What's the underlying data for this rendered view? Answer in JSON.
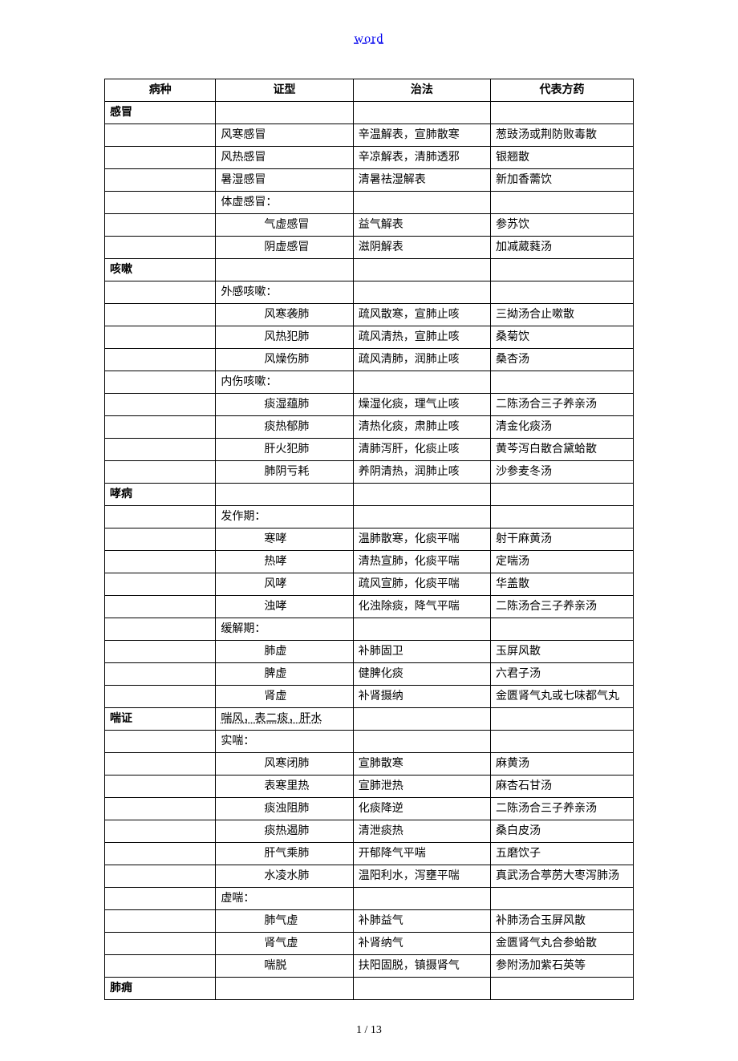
{
  "header_link": "word",
  "footer": "1 / 13",
  "columns": [
    "病种",
    "证型",
    "治法",
    "代表方药"
  ],
  "rows": [
    {
      "c1": "感冒",
      "c1_class": "section"
    },
    {
      "c2": "风寒感冒",
      "c3": "辛温解表，宣肺散寒",
      "c4": "葱豉汤或荆防败毒散"
    },
    {
      "c2": "风热感冒",
      "c3": "辛凉解表，清肺透邪",
      "c4": "银翘散"
    },
    {
      "c2": "暑湿感冒",
      "c3": "清暑祛湿解表",
      "c4": "新加香薷饮"
    },
    {
      "c2": "体虚感冒："
    },
    {
      "c2": "气虚感冒",
      "c2_class": "indent2",
      "c3": "益气解表",
      "c4": "参苏饮"
    },
    {
      "c2": "阴虚感冒",
      "c2_class": "indent2",
      "c3": "滋阴解表",
      "c4": "加减葳蕤汤"
    },
    {
      "c1": "咳嗽",
      "c1_class": "section"
    },
    {
      "c2": "外感咳嗽："
    },
    {
      "c2": "风寒袭肺",
      "c2_class": "indent2",
      "c3": "疏风散寒，宣肺止咳",
      "c4": "三拗汤合止嗽散"
    },
    {
      "c2": "风热犯肺",
      "c2_class": "indent2",
      "c3": "疏风清热，宣肺止咳",
      "c4": "桑菊饮"
    },
    {
      "c2": "风燥伤肺",
      "c2_class": "indent2",
      "c3": "疏风清肺，润肺止咳",
      "c4": "桑杏汤"
    },
    {
      "c2": "内伤咳嗽："
    },
    {
      "c2": "痰湿蕴肺",
      "c2_class": "indent2",
      "c3": "燥湿化痰，理气止咳",
      "c4": "二陈汤合三子养亲汤"
    },
    {
      "c2": "痰热郁肺",
      "c2_class": "indent2",
      "c3": "清热化痰，肃肺止咳",
      "c4": "清金化痰汤"
    },
    {
      "c2": "肝火犯肺",
      "c2_class": "indent2",
      "c3": "清肺泻肝，化痰止咳",
      "c4": "黄芩泻白散合黛蛤散"
    },
    {
      "c2": "肺阴亏耗",
      "c2_class": "indent2",
      "c3": "养阴清热，润肺止咳",
      "c4": "沙参麦冬汤"
    },
    {
      "c1": "哮病",
      "c1_class": "section"
    },
    {
      "c2": "发作期："
    },
    {
      "c2": "寒哮",
      "c2_class": "indent2",
      "c3": "温肺散寒，化痰平喘",
      "c4": "射干麻黄汤"
    },
    {
      "c2": "热哮",
      "c2_class": "indent2",
      "c3": "清热宣肺，化痰平喘",
      "c4": "定喘汤"
    },
    {
      "c2": "风哮",
      "c2_class": "indent2",
      "c3": "疏风宣肺，化痰平喘",
      "c4": "华盖散"
    },
    {
      "c2": "浊哮",
      "c2_class": "indent2",
      "c3": "化浊除痰，降气平喘",
      "c4": "二陈汤合三子养亲汤"
    },
    {
      "c2": "缓解期："
    },
    {
      "c2": "肺虚",
      "c2_class": "indent2",
      "c3": "补肺固卫",
      "c4": "玉屏风散"
    },
    {
      "c2": "脾虚",
      "c2_class": "indent2",
      "c3": "健脾化痰",
      "c4": "六君子汤"
    },
    {
      "c2": "肾虚",
      "c2_class": "indent2",
      "c3": "补肾摄纳",
      "c4": "金匮肾气丸或七味都气丸"
    },
    {
      "c1": "喘证",
      "c1_class": "section",
      "c2": "喘风，表二痰，肝水",
      "c2_class": "underline-dash"
    },
    {
      "c2": "实喘："
    },
    {
      "c2": "风寒闭肺",
      "c2_class": "indent2",
      "c3": "宣肺散寒",
      "c4": "麻黄汤"
    },
    {
      "c2": "表寒里热",
      "c2_class": "indent2",
      "c3": "宣肺泄热",
      "c4": "麻杏石甘汤"
    },
    {
      "c2": "痰浊阻肺",
      "c2_class": "indent2",
      "c3": "化痰降逆",
      "c4": "二陈汤合三子养亲汤"
    },
    {
      "c2": "痰热遏肺",
      "c2_class": "indent2",
      "c3": "清泄痰热",
      "c4": "桑白皮汤"
    },
    {
      "c2": "肝气乘肺",
      "c2_class": "indent2",
      "c3": "开郁降气平喘",
      "c4": "五磨饮子"
    },
    {
      "c2": "水凌水肺",
      "c2_class": "indent2",
      "c3": "温阳利水，泻壅平喘",
      "c4": "真武汤合葶苈大枣泻肺汤"
    },
    {
      "c2": "虚喘："
    },
    {
      "c2": "肺气虚",
      "c2_class": "indent2",
      "c3": "补肺益气",
      "c4": "补肺汤合玉屏风散"
    },
    {
      "c2": "肾气虚",
      "c2_class": "indent2",
      "c3": "补肾纳气",
      "c4": "金匮肾气丸合参蛤散"
    },
    {
      "c2": "喘脱",
      "c2_class": "indent2",
      "c3": "扶阳固脱，镇摄肾气",
      "c4": "参附汤加紫石英等"
    },
    {
      "c1": "肺痈",
      "c1_class": "section"
    }
  ]
}
